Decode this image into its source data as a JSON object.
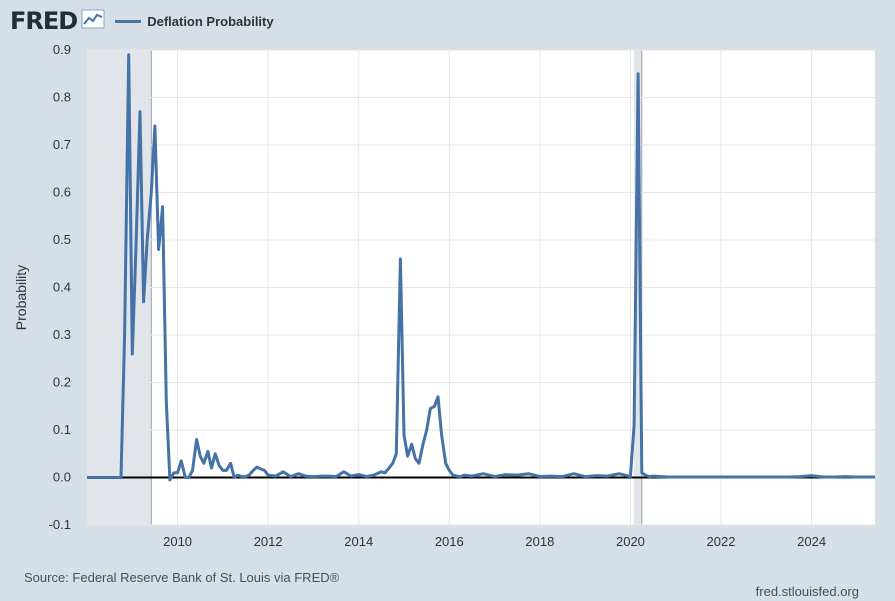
{
  "header": {
    "logo_text": "FRED",
    "logo_icon": "chart-line-icon",
    "series_legend": "Deflation Probability"
  },
  "footer": {
    "source": "Source: Federal Reserve Bank of St. Louis via FRED®",
    "url": "fred.stlouisfed.org"
  },
  "colors": {
    "background": "#d6dee8",
    "plot_background": "#ffffff",
    "series": "#4572a7",
    "recession_shading": "#e1e5ea",
    "zero_line": "#000000",
    "grid": "#e6e6e6"
  },
  "chart_data": {
    "type": "line",
    "title": "",
    "xlabel": "",
    "ylabel": "Probability",
    "xlim": [
      2008.0,
      2025.4
    ],
    "ylim": [
      -0.1,
      0.9
    ],
    "y_ticks": [
      -0.1,
      0.0,
      0.1,
      0.2,
      0.3,
      0.4,
      0.5,
      0.6,
      0.7,
      0.8,
      0.9
    ],
    "y_tick_labels": [
      "-0.1",
      "0.0",
      "0.1",
      "0.2",
      "0.3",
      "0.4",
      "0.5",
      "0.6",
      "0.7",
      "0.8",
      "0.9"
    ],
    "x_ticks": [
      2010,
      2012,
      2014,
      2016,
      2018,
      2020,
      2022,
      2024
    ],
    "x_tick_labels": [
      "2010",
      "2012",
      "2014",
      "2016",
      "2018",
      "2020",
      "2022",
      "2024"
    ],
    "grid": true,
    "legend": "top-left",
    "recessions": [
      {
        "start": 2008.0,
        "end": 2009.42
      },
      {
        "start": 2020.08,
        "end": 2020.25
      }
    ],
    "series": [
      {
        "name": "Deflation Probability",
        "x": [
          2008.0,
          2008.5,
          2008.75,
          2008.83,
          2008.92,
          2009.0,
          2009.08,
          2009.17,
          2009.25,
          2009.33,
          2009.42,
          2009.5,
          2009.58,
          2009.67,
          2009.75,
          2009.83,
          2009.92,
          2010.0,
          2010.08,
          2010.17,
          2010.25,
          2010.33,
          2010.42,
          2010.5,
          2010.58,
          2010.67,
          2010.75,
          2010.83,
          2010.92,
          2011.0,
          2011.08,
          2011.17,
          2011.25,
          2011.33,
          2011.42,
          2011.5,
          2011.58,
          2011.67,
          2011.75,
          2011.83,
          2011.92,
          2012.0,
          2012.17,
          2012.33,
          2012.5,
          2012.67,
          2012.83,
          2013.0,
          2013.17,
          2013.33,
          2013.5,
          2013.67,
          2013.83,
          2014.0,
          2014.17,
          2014.33,
          2014.5,
          2014.58,
          2014.67,
          2014.75,
          2014.83,
          2014.92,
          2015.0,
          2015.08,
          2015.17,
          2015.25,
          2015.33,
          2015.42,
          2015.5,
          2015.58,
          2015.67,
          2015.75,
          2015.83,
          2015.92,
          2016.0,
          2016.08,
          2016.17,
          2016.25,
          2016.33,
          2016.5,
          2016.75,
          2017.0,
          2017.25,
          2017.5,
          2017.75,
          2018.0,
          2018.25,
          2018.5,
          2018.75,
          2019.0,
          2019.25,
          2019.5,
          2019.75,
          2020.0,
          2020.08,
          2020.17,
          2020.25,
          2020.33,
          2020.42,
          2020.5,
          2020.67,
          2020.83,
          2021.0,
          2021.5,
          2022.0,
          2022.5,
          2023.0,
          2023.5,
          2023.75,
          2024.0,
          2024.25,
          2024.5,
          2024.75,
          2025.0,
          2025.4
        ],
        "y": [
          0.0,
          0.0,
          0.0,
          0.3,
          0.89,
          0.26,
          0.48,
          0.77,
          0.37,
          0.5,
          0.6,
          0.74,
          0.48,
          0.57,
          0.16,
          -0.005,
          0.01,
          0.01,
          0.035,
          0.0,
          0.0,
          0.015,
          0.08,
          0.045,
          0.03,
          0.055,
          0.02,
          0.05,
          0.025,
          0.015,
          0.015,
          0.03,
          0.0,
          0.005,
          0.002,
          0.002,
          0.005,
          0.015,
          0.022,
          0.018,
          0.015,
          0.005,
          0.003,
          0.012,
          0.002,
          0.008,
          0.003,
          0.002,
          0.003,
          0.003,
          0.002,
          0.012,
          0.003,
          0.006,
          0.002,
          0.005,
          0.012,
          0.01,
          0.02,
          0.03,
          0.05,
          0.46,
          0.09,
          0.045,
          0.07,
          0.04,
          0.03,
          0.07,
          0.1,
          0.145,
          0.15,
          0.17,
          0.09,
          0.03,
          0.015,
          0.005,
          0.003,
          0.002,
          0.005,
          0.003,
          0.008,
          0.002,
          0.006,
          0.005,
          0.008,
          0.002,
          0.003,
          0.002,
          0.008,
          0.002,
          0.004,
          0.003,
          0.008,
          0.002,
          0.11,
          0.85,
          0.01,
          0.005,
          0.002,
          0.003,
          0.002,
          0.001,
          0.001,
          0.001,
          0.001,
          0.001,
          0.001,
          0.001,
          0.002,
          0.004,
          0.001,
          0.001,
          0.002,
          0.001,
          0.001
        ]
      }
    ]
  }
}
